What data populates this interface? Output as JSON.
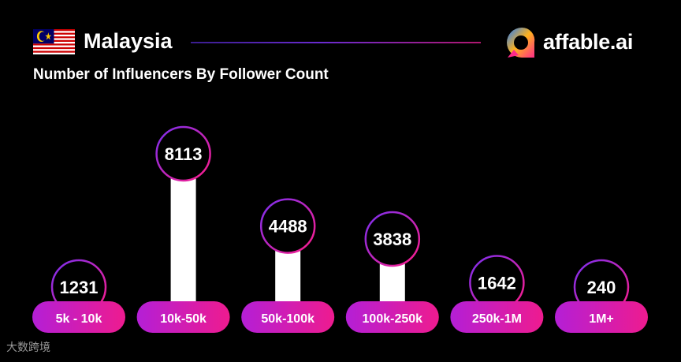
{
  "header": {
    "country": "Malaysia",
    "brand": "affable.ai",
    "subtitle": "Number of Influencers By Follower Count"
  },
  "watermark": "大数跨境",
  "colors": {
    "background": "#000000",
    "pill_start": "#b41fd6",
    "pill_end": "#ee1b8f",
    "bar": "#ffffff",
    "circle_ring_start": "#7a2ff0",
    "circle_ring_end": "#ff1c8a",
    "logo_blue": "#1e7bff",
    "logo_orange": "#ffb21c",
    "logo_pink": "#ff2a8a"
  },
  "chart_data": {
    "type": "bar",
    "title": "Number of Influencers By Follower Count",
    "categories": [
      "5k - 10k",
      "10k-50k",
      "50k-100k",
      "100k-250k",
      "250k-1M",
      "1M+"
    ],
    "values": [
      1231,
      8113,
      4488,
      3838,
      1642,
      240
    ],
    "value_labels": [
      "1231",
      "8113",
      "4488",
      "3838",
      "1642",
      "240"
    ],
    "xlabel": "",
    "ylabel": "",
    "grid": false,
    "legend": "none"
  }
}
